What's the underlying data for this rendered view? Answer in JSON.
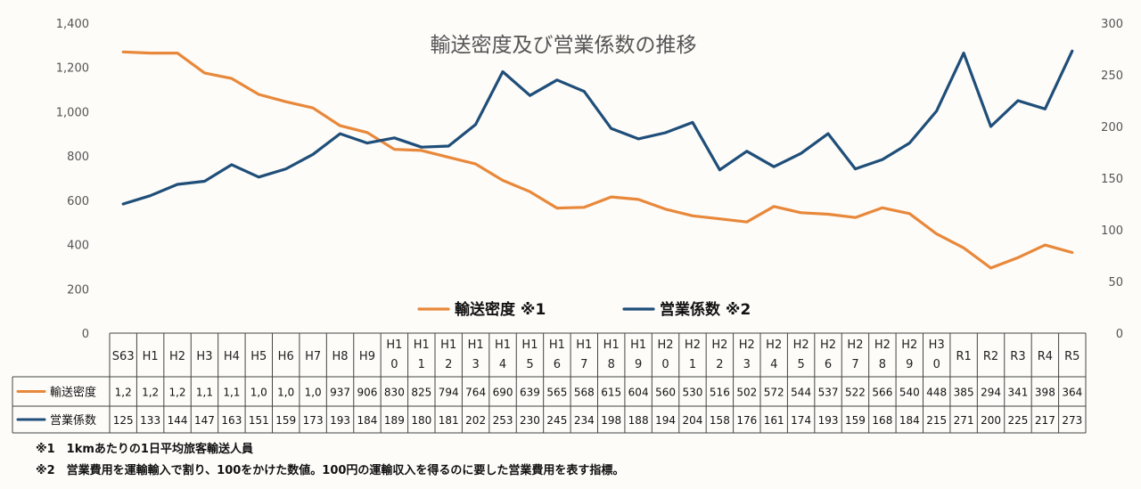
{
  "chart_data": {
    "type": "line",
    "title": "輸送密度及び営業係数の推移",
    "categories": [
      "S63",
      "H1",
      "H2",
      "H3",
      "H4",
      "H5",
      "H6",
      "H7",
      "H8",
      "H9",
      "H10",
      "H11",
      "H12",
      "H13",
      "H14",
      "H15",
      "H16",
      "H17",
      "H18",
      "H19",
      "H20",
      "H21",
      "H22",
      "H23",
      "H24",
      "H25",
      "H26",
      "H27",
      "H28",
      "H29",
      "H30",
      "R1",
      "R2",
      "R3",
      "R4",
      "R5"
    ],
    "category_labels": [
      [
        "S63"
      ],
      [
        "H1"
      ],
      [
        "H2"
      ],
      [
        "H3"
      ],
      [
        "H4"
      ],
      [
        "H5"
      ],
      [
        "H6"
      ],
      [
        "H7"
      ],
      [
        "H8"
      ],
      [
        "H9"
      ],
      [
        "H1",
        "0"
      ],
      [
        "H1",
        "1"
      ],
      [
        "H1",
        "2"
      ],
      [
        "H1",
        "3"
      ],
      [
        "H1",
        "4"
      ],
      [
        "H1",
        "5"
      ],
      [
        "H1",
        "6"
      ],
      [
        "H1",
        "7"
      ],
      [
        "H1",
        "8"
      ],
      [
        "H1",
        "9"
      ],
      [
        "H2",
        "0"
      ],
      [
        "H2",
        "1"
      ],
      [
        "H2",
        "2"
      ],
      [
        "H2",
        "3"
      ],
      [
        "H2",
        "4"
      ],
      [
        "H2",
        "5"
      ],
      [
        "H2",
        "6"
      ],
      [
        "H2",
        "7"
      ],
      [
        "H2",
        "8"
      ],
      [
        "H2",
        "9"
      ],
      [
        "H3",
        "0"
      ],
      [
        "R1"
      ],
      [
        "R2"
      ],
      [
        "R3"
      ],
      [
        "R4"
      ],
      [
        "R5"
      ]
    ],
    "left_axis": {
      "ylim": [
        0,
        1400
      ],
      "ticks": [
        "0",
        "200",
        "400",
        "600",
        "800",
        "1,000",
        "1,200",
        "1,400"
      ]
    },
    "right_axis": {
      "ylim": [
        0,
        300
      ],
      "ticks": [
        "0",
        "50",
        "100",
        "150",
        "200",
        "250",
        "300"
      ]
    },
    "grid": false,
    "legend_position": "bottom-center",
    "series": [
      {
        "name": "輸送密度",
        "legend_label": "輸送密度 ※1",
        "axis": "left",
        "color": "#e8883a",
        "values": [
          1270,
          1265,
          1265,
          1175,
          1150,
          1078,
          1045,
          1017,
          937,
          906,
          830,
          825,
          794,
          764,
          690,
          639,
          565,
          568,
          615,
          604,
          560,
          530,
          516,
          502,
          572,
          544,
          537,
          522,
          566,
          540,
          448,
          385,
          294,
          341,
          398,
          364
        ],
        "table_labels": [
          "1,2",
          "1,2",
          "1,2",
          "1,1",
          "1,1",
          "1,0",
          "1,0",
          "1,0",
          "937",
          "906",
          "830",
          "825",
          "794",
          "764",
          "690",
          "639",
          "565",
          "568",
          "615",
          "604",
          "560",
          "530",
          "516",
          "502",
          "572",
          "544",
          "537",
          "522",
          "566",
          "540",
          "448",
          "385",
          "294",
          "341",
          "398",
          "364"
        ]
      },
      {
        "name": "営業係数",
        "legend_label": "営業係数 ※2",
        "axis": "right",
        "color": "#1f4e79",
        "values": [
          125,
          133,
          144,
          147,
          163,
          151,
          159,
          173,
          193,
          184,
          189,
          180,
          181,
          202,
          253,
          230,
          245,
          234,
          198,
          188,
          194,
          204,
          158,
          176,
          161,
          174,
          193,
          159,
          168,
          184,
          215,
          271,
          200,
          225,
          217,
          273
        ],
        "table_labels": [
          "125",
          "133",
          "144",
          "147",
          "163",
          "151",
          "159",
          "173",
          "193",
          "184",
          "189",
          "180",
          "181",
          "202",
          "253",
          "230",
          "245",
          "234",
          "198",
          "188",
          "194",
          "204",
          "158",
          "176",
          "161",
          "174",
          "193",
          "159",
          "168",
          "184",
          "215",
          "271",
          "200",
          "225",
          "217",
          "273"
        ]
      }
    ]
  },
  "notes": [
    "※1　1kmあたりの1日平均旅客輸送人員",
    "※2　営業費用を運輸輸入で割り、100をかけた数値。100円の運輸収入を得るのに要した営業費用を表す指標。"
  ]
}
